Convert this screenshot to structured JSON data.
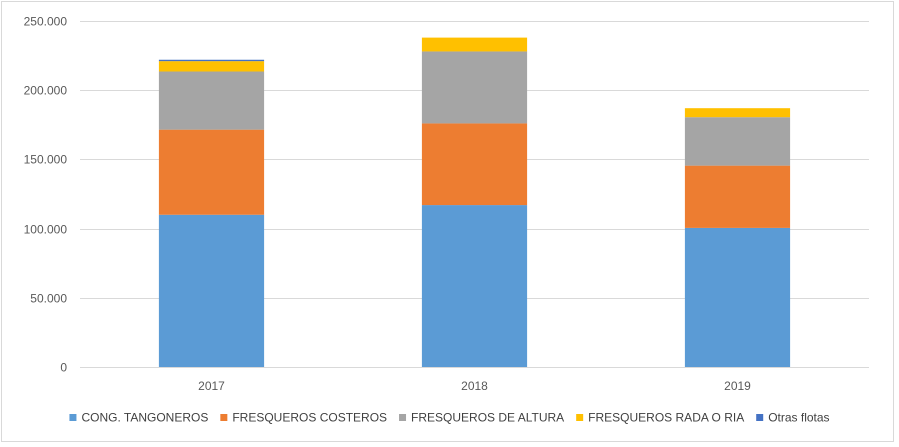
{
  "chart_data": {
    "type": "bar",
    "stacked": true,
    "categories": [
      "2017",
      "2018",
      "2019"
    ],
    "series": [
      {
        "name": "CONG. TANGONEROS",
        "color": "#5b9bd5",
        "values": [
          110000,
          117000,
          100500
        ]
      },
      {
        "name": "FRESQUEROS COSTEROS",
        "color": "#ed7d31",
        "values": [
          61500,
          59000,
          45000
        ]
      },
      {
        "name": "FRESQUEROS DE ALTURA",
        "color": "#a5a5a5",
        "values": [
          42000,
          52000,
          35000
        ]
      },
      {
        "name": "FRESQUEROS RADA O RIA",
        "color": "#ffc000",
        "values": [
          7500,
          10000,
          6500
        ]
      },
      {
        "name": "Otras flotas",
        "color": "#4472c4",
        "values": [
          1000,
          0,
          0
        ]
      }
    ],
    "y_ticks": [
      "0",
      "50.000",
      "100.000",
      "150.000",
      "200.000",
      "250.000"
    ],
    "ylim": [
      0,
      250000
    ],
    "grid": true,
    "legend_position": "bottom",
    "title": "",
    "xlabel": "",
    "ylabel": ""
  }
}
